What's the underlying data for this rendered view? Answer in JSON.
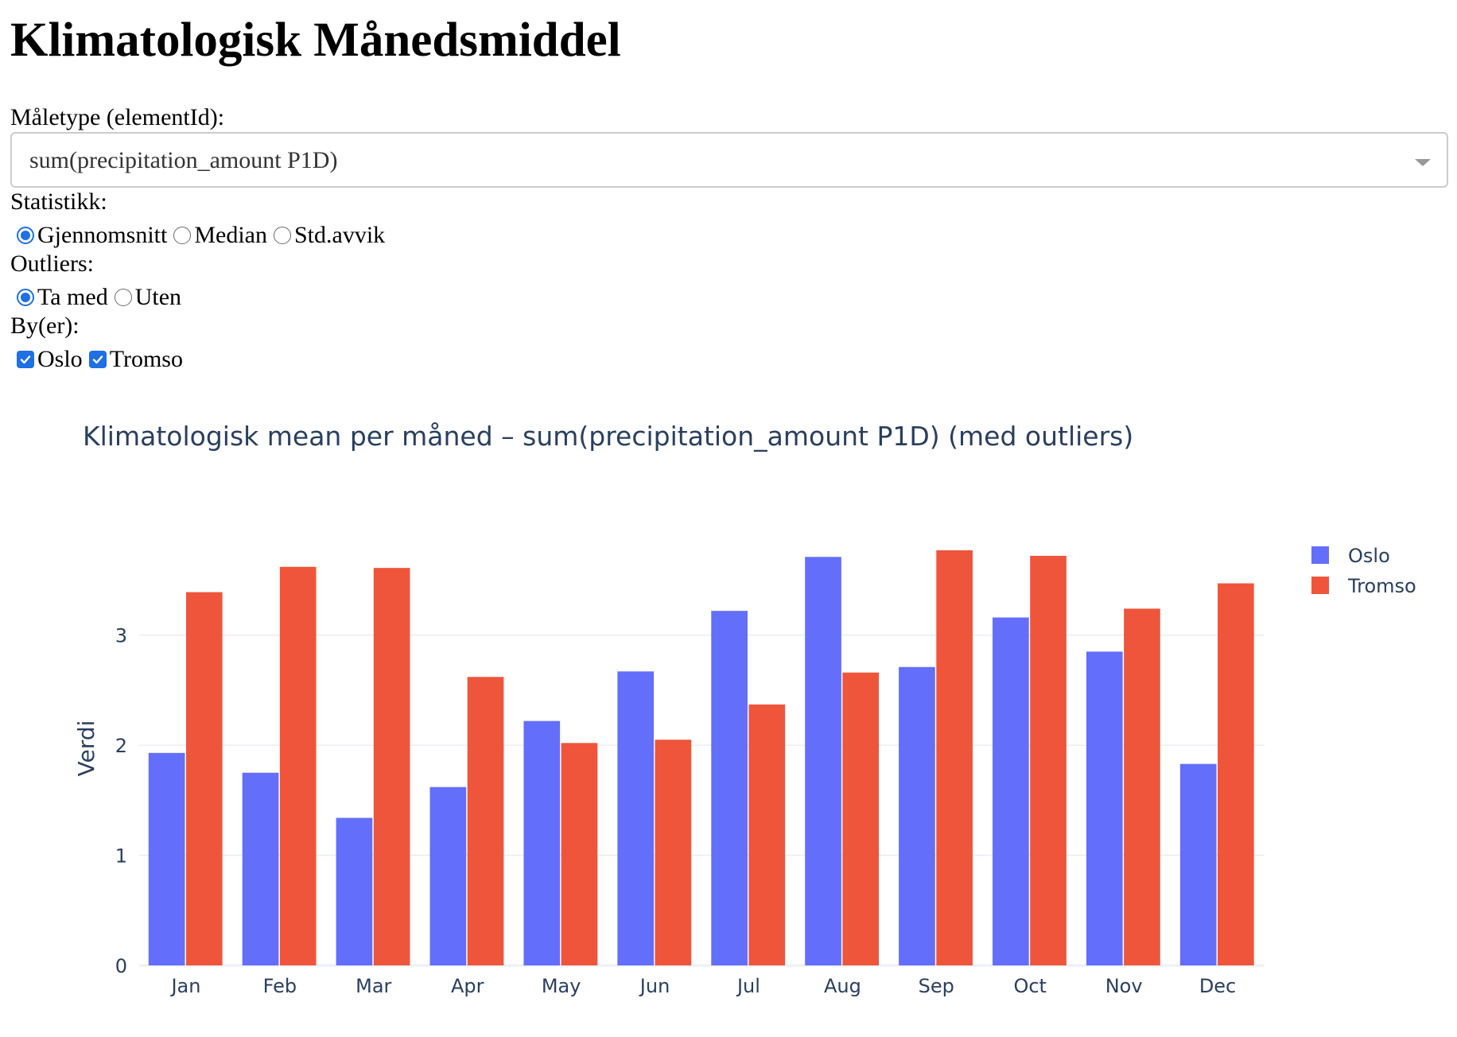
{
  "page": {
    "title": "Klimatologisk Månedsmiddel"
  },
  "controls": {
    "element_label": "Måletype (elementId):",
    "element_value": "sum(precipitation_amount P1D)",
    "stat_label": "Statistikk:",
    "stat_options": [
      {
        "label": "Gjennomsnitt",
        "checked": true
      },
      {
        "label": "Median",
        "checked": false
      },
      {
        "label": "Std.avvik",
        "checked": false
      }
    ],
    "outliers_label": "Outliers:",
    "outlier_options": [
      {
        "label": "Ta med",
        "checked": true
      },
      {
        "label": "Uten",
        "checked": false
      }
    ],
    "cities_label": "By(er):",
    "city_options": [
      {
        "label": "Oslo",
        "checked": true
      },
      {
        "label": "Tromso",
        "checked": true
      }
    ]
  },
  "colors": {
    "oslo": "#636efa",
    "tromso": "#ef553b",
    "accent": "#1f6fe5"
  },
  "chart_data": {
    "type": "bar",
    "title": "Klimatologisk mean per måned – sum(precipitation_amount P1D) (med outliers)",
    "xlabel": "",
    "ylabel": "Verdi",
    "categories": [
      "Jan",
      "Feb",
      "Mar",
      "Apr",
      "May",
      "Jun",
      "Jul",
      "Aug",
      "Sep",
      "Oct",
      "Nov",
      "Dec"
    ],
    "series": [
      {
        "name": "Oslo",
        "values": [
          1.93,
          1.75,
          1.34,
          1.62,
          2.22,
          2.67,
          3.22,
          3.71,
          2.71,
          3.16,
          2.85,
          1.83
        ]
      },
      {
        "name": "Tromso",
        "values": [
          3.39,
          3.62,
          3.61,
          2.62,
          2.02,
          2.05,
          2.37,
          2.66,
          3.77,
          3.72,
          3.24,
          3.47
        ]
      }
    ],
    "ylim": [
      0,
      3.77
    ],
    "yticks": [
      0,
      1,
      2,
      3
    ],
    "grid": true,
    "legend": "top-right"
  }
}
